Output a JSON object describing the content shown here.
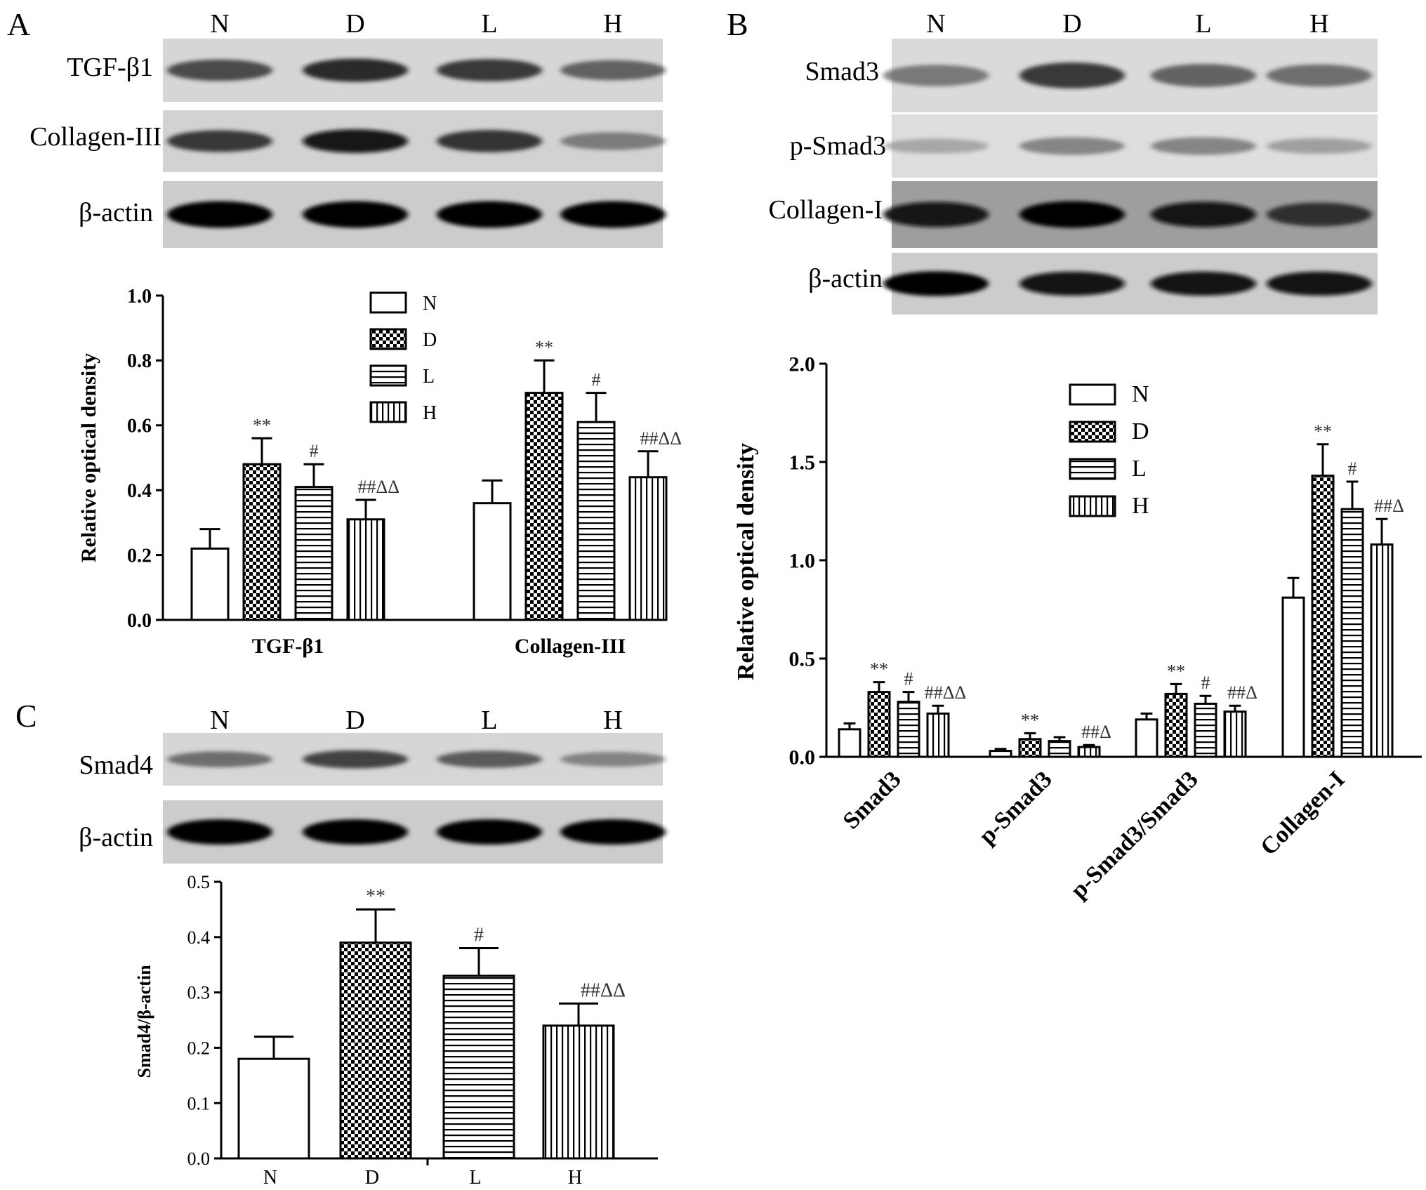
{
  "groups": [
    "N",
    "D",
    "L",
    "H"
  ],
  "panels": {
    "A": {
      "letter": "A",
      "lane_labels": [
        "N",
        "D",
        "L",
        "H"
      ],
      "blots": [
        {
          "label": "TGF-β1",
          "intensity": [
            0.72,
            0.85,
            0.78,
            0.62
          ],
          "bg": "#d6d6d6"
        },
        {
          "label": "Collagen-III",
          "intensity": [
            0.78,
            0.92,
            0.82,
            0.48
          ],
          "bg": "#d2d2d2"
        },
        {
          "label": "β-actin",
          "intensity": [
            1.0,
            1.0,
            1.0,
            1.0
          ],
          "bg": "#cccccc"
        }
      ]
    },
    "B": {
      "letter": "B",
      "lane_labels": [
        "N",
        "D",
        "L",
        "H"
      ],
      "blots": [
        {
          "label": "Smad3",
          "intensity": [
            0.5,
            0.78,
            0.6,
            0.55
          ],
          "bg": "#dadada"
        },
        {
          "label": "p-Smad3",
          "intensity": [
            0.25,
            0.45,
            0.45,
            0.3
          ],
          "bg": "#dedede"
        },
        {
          "label": "Collagen-I",
          "intensity": [
            0.9,
            1.0,
            0.92,
            0.8
          ],
          "bg": "#9e9e9e"
        },
        {
          "label": "β-actin",
          "intensity": [
            1.0,
            0.95,
            0.95,
            0.95
          ],
          "bg": "#cccccc"
        }
      ]
    },
    "C": {
      "letter": "C",
      "lane_labels": [
        "N",
        "D",
        "L",
        "H"
      ],
      "blots": [
        {
          "label": "Smad4",
          "intensity": [
            0.55,
            0.75,
            0.65,
            0.45
          ],
          "bg": "#d6d6d6"
        },
        {
          "label": "β-actin",
          "intensity": [
            1.0,
            1.0,
            1.0,
            1.0
          ],
          "bg": "#cccccc"
        }
      ]
    }
  },
  "legend": [
    "N",
    "D",
    "L",
    "H"
  ],
  "chart_data": [
    {
      "panel": "A",
      "type": "bar",
      "categories": [
        "TGF-β1",
        "Collagen-III"
      ],
      "series": [
        {
          "name": "N",
          "values": [
            0.22,
            0.36
          ],
          "errors": [
            0.06,
            0.07
          ],
          "annotations": [
            "",
            ""
          ]
        },
        {
          "name": "D",
          "values": [
            0.48,
            0.7
          ],
          "errors": [
            0.08,
            0.1
          ],
          "annotations": [
            "**",
            "**"
          ]
        },
        {
          "name": "L",
          "values": [
            0.41,
            0.61
          ],
          "errors": [
            0.07,
            0.09
          ],
          "annotations": [
            "#",
            "#"
          ]
        },
        {
          "name": "H",
          "values": [
            0.31,
            0.44
          ],
          "errors": [
            0.06,
            0.08
          ],
          "annotations": [
            "##ΔΔ",
            "##ΔΔ"
          ]
        }
      ],
      "ylabel": "Relative optical density",
      "ylim": [
        0,
        1.0
      ],
      "yticks": [
        "0.0",
        "0.2",
        "0.4",
        "0.6",
        "0.8",
        "1.0"
      ],
      "legend": "top-right"
    },
    {
      "panel": "B",
      "type": "bar",
      "categories": [
        "Smad3",
        "p-Smad3",
        "p-Smad3/Smad3",
        "Collagen-I"
      ],
      "series": [
        {
          "name": "N",
          "values": [
            0.14,
            0.03,
            0.19,
            0.81
          ],
          "errors": [
            0.03,
            0.01,
            0.03,
            0.1
          ],
          "annotations": [
            "",
            "",
            "",
            ""
          ]
        },
        {
          "name": "D",
          "values": [
            0.33,
            0.09,
            0.32,
            1.43
          ],
          "errors": [
            0.05,
            0.03,
            0.05,
            0.16
          ],
          "annotations": [
            "**",
            "**",
            "**",
            "**"
          ]
        },
        {
          "name": "L",
          "values": [
            0.28,
            0.08,
            0.27,
            1.26
          ],
          "errors": [
            0.05,
            0.02,
            0.04,
            0.14
          ],
          "annotations": [
            "#",
            "",
            "#",
            "#"
          ]
        },
        {
          "name": "H",
          "values": [
            0.22,
            0.05,
            0.23,
            1.08
          ],
          "errors": [
            0.04,
            0.01,
            0.03,
            0.13
          ],
          "annotations": [
            "##ΔΔ",
            "##Δ",
            "##Δ",
            "##Δ"
          ]
        }
      ],
      "ylabel": "Relative optical density",
      "ylim": [
        0,
        2.0
      ],
      "yticks": [
        "0.0",
        "0.5",
        "1.0",
        "1.5",
        "2.0"
      ],
      "legend": "top-center"
    },
    {
      "panel": "C",
      "type": "bar",
      "categories": [
        "N",
        "D",
        "L",
        "H"
      ],
      "values": [
        0.18,
        0.39,
        0.33,
        0.24
      ],
      "errors": [
        0.04,
        0.06,
        0.05,
        0.04
      ],
      "annotations": [
        "",
        "**",
        "#",
        "##ΔΔ"
      ],
      "ylabel": "Smad4/β-actin",
      "ylim": [
        0,
        0.5
      ],
      "yticks": [
        "0.0",
        "0.1",
        "0.2",
        "0.3",
        "0.4",
        "0.5"
      ]
    }
  ]
}
